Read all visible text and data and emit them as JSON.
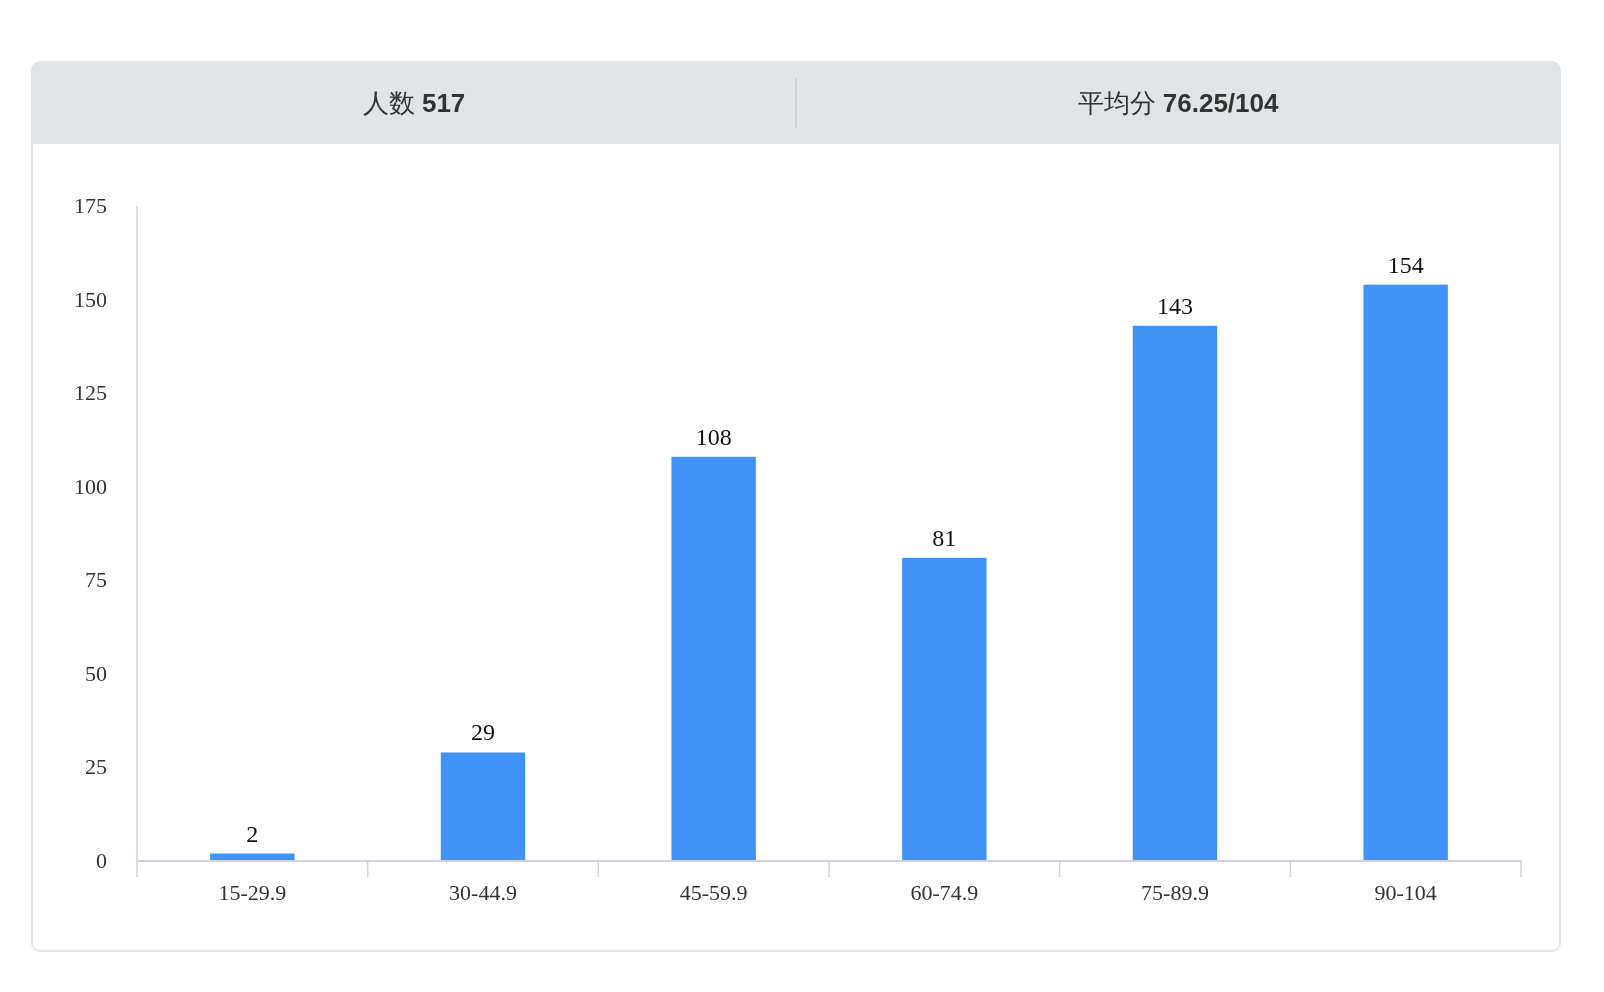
{
  "chart_data": {
    "type": "bar",
    "annotations": [
      "人数 517",
      "平均分 76.25/104"
    ],
    "categories": [
      "15-29.9",
      "30-44.9",
      "45-59.9",
      "60-74.9",
      "75-89.9",
      "90-104"
    ],
    "values": [
      2,
      29,
      108,
      81,
      143,
      154
    ],
    "color": "#4192f7",
    "ylim": [
      0,
      175
    ],
    "yticks": [
      0,
      25,
      50,
      75,
      100,
      125,
      150,
      175
    ],
    "data_labels": true
  }
}
